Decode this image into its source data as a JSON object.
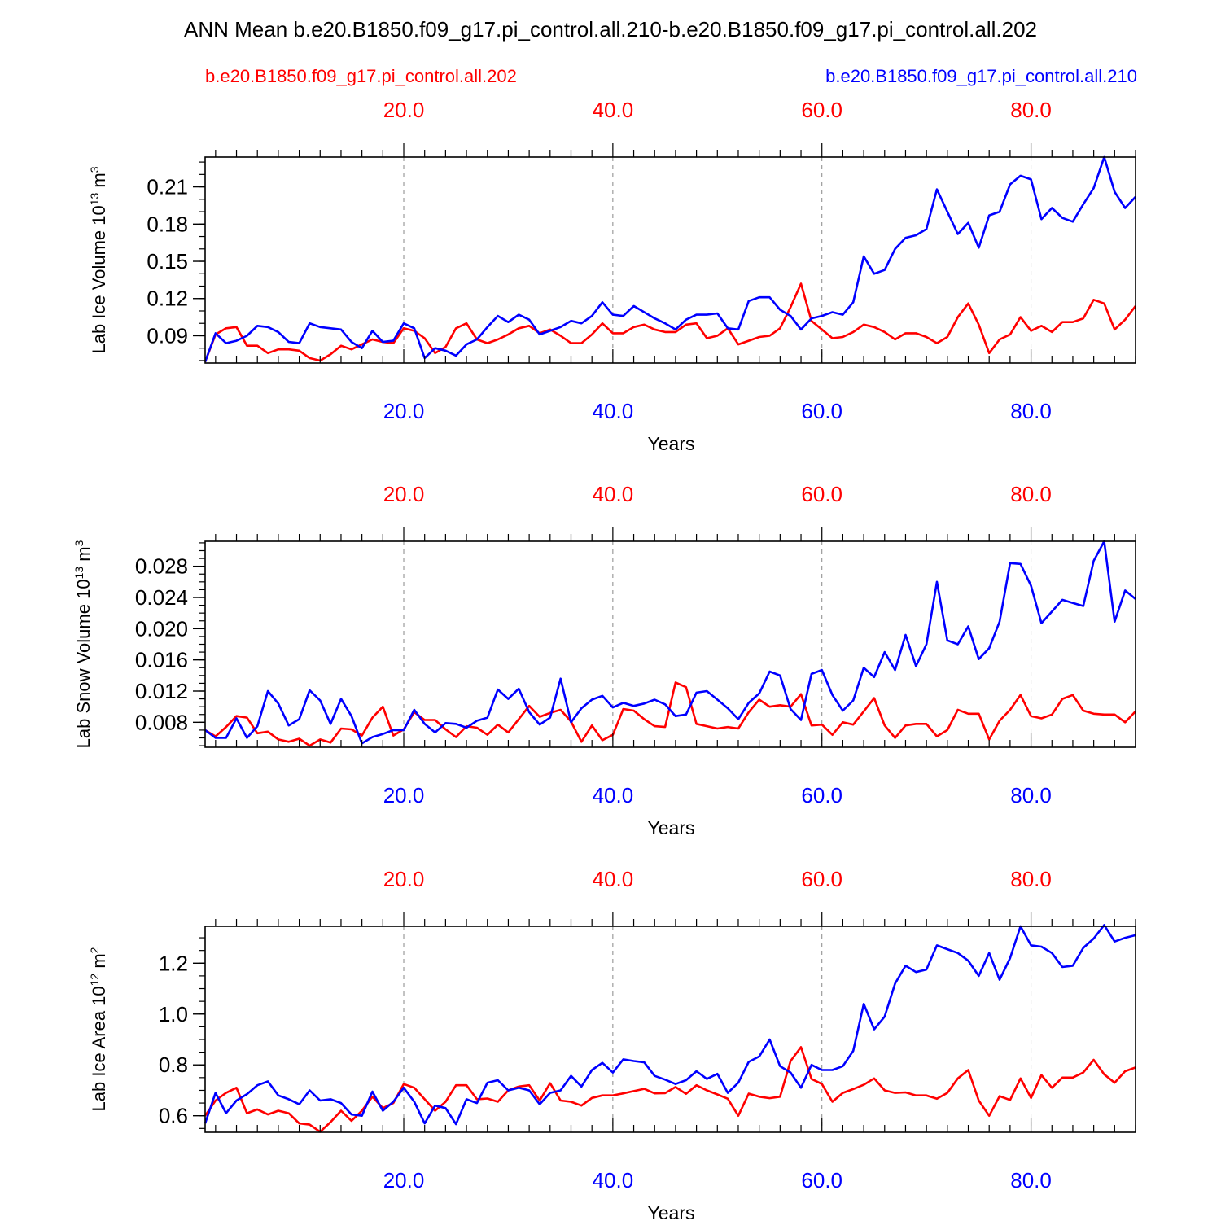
{
  "title": "ANN Mean b.e20.B1850.f09_g17.pi_control.all.210-b.e20.B1850.f09_g17.pi_control.all.202",
  "legend": {
    "left": "b.e20.B1850.f09_g17.pi_control.all.202",
    "right": "b.e20.B1850.f09_g17.pi_control.all.210"
  },
  "colors": {
    "case_202": "#ff0000",
    "case_210": "#0000ff",
    "axis": "#000000",
    "grid": "#888888"
  },
  "chart_data": [
    {
      "type": "line",
      "ylabel": "Lab Ice Volume 10",
      "ylabel_exp": "13",
      "ylabel_unit": " m",
      "ylabel_unit_exp": "3",
      "xlabel": "Years",
      "xlim": [
        1,
        90
      ],
      "ylim": [
        0.068,
        0.234
      ],
      "yticks": [
        0.09,
        0.12,
        0.15,
        0.18,
        0.21
      ],
      "ytick_labels": [
        "0.09",
        "0.12",
        "0.15",
        "0.18",
        "0.21"
      ],
      "yminor_step": 0.01,
      "xticks": [
        20,
        40,
        60,
        80
      ],
      "xtick_labels": [
        "20.0",
        "40.0",
        "60.0",
        "80.0"
      ],
      "series": [
        {
          "name": "b.e20.B1850.f09_g17.pi_control.all.202",
          "color": "#ff0000",
          "values": [
            0.069,
            0.091,
            0.096,
            0.097,
            0.082,
            0.082,
            0.076,
            0.079,
            0.079,
            0.078,
            0.072,
            0.07,
            0.075,
            0.082,
            0.079,
            0.083,
            0.087,
            0.085,
            0.084,
            0.096,
            0.094,
            0.088,
            0.076,
            0.081,
            0.096,
            0.1,
            0.087,
            0.084,
            0.087,
            0.091,
            0.096,
            0.098,
            0.092,
            0.095,
            0.09,
            0.084,
            0.084,
            0.091,
            0.1,
            0.092,
            0.092,
            0.097,
            0.099,
            0.095,
            0.093,
            0.093,
            0.099,
            0.1,
            0.088,
            0.09,
            0.096,
            0.083,
            0.086,
            0.089,
            0.09,
            0.096,
            0.113,
            0.132,
            0.102,
            0.095,
            0.088,
            0.089,
            0.093,
            0.099,
            0.097,
            0.093,
            0.087,
            0.092,
            0.092,
            0.089,
            0.084,
            0.089,
            0.105,
            0.116,
            0.099,
            0.076,
            0.087,
            0.091,
            0.105,
            0.094,
            0.098,
            0.093,
            0.101,
            0.101,
            0.104,
            0.119,
            0.116,
            0.095,
            0.103,
            0.114
          ]
        },
        {
          "name": "b.e20.B1850.f09_g17.pi_control.all.210",
          "color": "#0000ff",
          "values": [
            0.069,
            0.092,
            0.084,
            0.086,
            0.09,
            0.098,
            0.097,
            0.093,
            0.085,
            0.084,
            0.1,
            0.097,
            0.096,
            0.095,
            0.085,
            0.08,
            0.094,
            0.085,
            0.086,
            0.1,
            0.096,
            0.072,
            0.08,
            0.078,
            0.074,
            0.083,
            0.087,
            0.097,
            0.106,
            0.101,
            0.107,
            0.103,
            0.091,
            0.094,
            0.097,
            0.102,
            0.1,
            0.106,
            0.117,
            0.107,
            0.106,
            0.114,
            0.109,
            0.104,
            0.1,
            0.095,
            0.103,
            0.107,
            0.107,
            0.108,
            0.096,
            0.095,
            0.118,
            0.121,
            0.121,
            0.111,
            0.106,
            0.095,
            0.104,
            0.106,
            0.109,
            0.107,
            0.117,
            0.154,
            0.14,
            0.143,
            0.16,
            0.169,
            0.171,
            0.176,
            0.208,
            0.19,
            0.172,
            0.181,
            0.161,
            0.187,
            0.19,
            0.212,
            0.219,
            0.216,
            0.184,
            0.193,
            0.185,
            0.182,
            0.196,
            0.209,
            0.234,
            0.206,
            0.193,
            0.202
          ]
        }
      ]
    },
    {
      "type": "line",
      "ylabel": "Lab Snow Volume 10",
      "ylabel_exp": "13",
      "ylabel_unit": " m",
      "ylabel_unit_exp": "3",
      "xlabel": "Years",
      "xlim": [
        1,
        90
      ],
      "ylim": [
        0.0048,
        0.0312
      ],
      "yticks": [
        0.008,
        0.012,
        0.016,
        0.02,
        0.024,
        0.028
      ],
      "ytick_labels": [
        "0.008",
        "0.012",
        "0.016",
        "0.020",
        "0.024",
        "0.028"
      ],
      "yminor_step": 0.001,
      "xticks": [
        20,
        40,
        60,
        80
      ],
      "xtick_labels": [
        "20.0",
        "40.0",
        "60.0",
        "80.0"
      ],
      "series": [
        {
          "name": "b.e20.B1850.f09_g17.pi_control.all.202",
          "color": "#ff0000",
          "values": [
            0.007,
            0.0062,
            0.0074,
            0.0088,
            0.0086,
            0.0066,
            0.0068,
            0.0058,
            0.0055,
            0.0059,
            0.005,
            0.0058,
            0.0054,
            0.0072,
            0.0071,
            0.0063,
            0.0086,
            0.01,
            0.0063,
            0.0071,
            0.0093,
            0.0083,
            0.0083,
            0.0071,
            0.0061,
            0.0075,
            0.0073,
            0.0064,
            0.0077,
            0.0067,
            0.0084,
            0.0101,
            0.0087,
            0.0092,
            0.0096,
            0.0081,
            0.0055,
            0.0076,
            0.0057,
            0.0064,
            0.0097,
            0.0095,
            0.0084,
            0.0075,
            0.0074,
            0.0131,
            0.0125,
            0.0078,
            0.0075,
            0.0072,
            0.0074,
            0.0072,
            0.0093,
            0.0109,
            0.01,
            0.0102,
            0.01,
            0.0116,
            0.0076,
            0.0077,
            0.0064,
            0.008,
            0.0077,
            0.0094,
            0.0111,
            0.0076,
            0.006,
            0.0076,
            0.0078,
            0.0078,
            0.0062,
            0.007,
            0.0096,
            0.0091,
            0.0091,
            0.0058,
            0.0082,
            0.0096,
            0.0115,
            0.0088,
            0.0085,
            0.009,
            0.011,
            0.0115,
            0.0095,
            0.0091,
            0.009,
            0.009,
            0.008,
            0.0094
          ]
        },
        {
          "name": "b.e20.B1850.f09_g17.pi_control.all.210",
          "color": "#0000ff",
          "values": [
            0.007,
            0.006,
            0.006,
            0.0085,
            0.006,
            0.0075,
            0.012,
            0.0104,
            0.0076,
            0.0084,
            0.0121,
            0.0108,
            0.0078,
            0.011,
            0.0088,
            0.0053,
            0.0061,
            0.0065,
            0.007,
            0.007,
            0.0096,
            0.0078,
            0.0067,
            0.0079,
            0.0078,
            0.0073,
            0.0082,
            0.0086,
            0.0122,
            0.011,
            0.0123,
            0.0093,
            0.0077,
            0.0086,
            0.0136,
            0.008,
            0.0098,
            0.0109,
            0.0114,
            0.0099,
            0.0105,
            0.0101,
            0.0104,
            0.0109,
            0.0103,
            0.0088,
            0.009,
            0.0118,
            0.012,
            0.0109,
            0.0098,
            0.0084,
            0.0105,
            0.0117,
            0.0145,
            0.014,
            0.0097,
            0.0083,
            0.0142,
            0.0147,
            0.0115,
            0.0095,
            0.0108,
            0.015,
            0.0138,
            0.017,
            0.0147,
            0.0192,
            0.0152,
            0.018,
            0.026,
            0.0185,
            0.018,
            0.0203,
            0.0161,
            0.0175,
            0.0209,
            0.0284,
            0.0283,
            0.0255,
            0.0207,
            0.0222,
            0.0237,
            0.0233,
            0.0229,
            0.0287,
            0.0312,
            0.0209,
            0.0249,
            0.0238
          ]
        }
      ]
    },
    {
      "type": "line",
      "ylabel": "Lab Ice Area 10",
      "ylabel_exp": "12",
      "ylabel_unit": " m",
      "ylabel_unit_exp": "2",
      "xlabel": "Years",
      "xlim": [
        1,
        90
      ],
      "ylim": [
        0.535,
        1.345
      ],
      "yticks": [
        0.6,
        0.8,
        1.0,
        1.2
      ],
      "ytick_labels": [
        "0.6",
        "0.8",
        "1.0",
        "1.2"
      ],
      "yminor_step": 0.05,
      "xticks": [
        20,
        40,
        60,
        80
      ],
      "xtick_labels": [
        "20.0",
        "40.0",
        "60.0",
        "80.0"
      ],
      "series": [
        {
          "name": "b.e20.B1850.f09_g17.pi_control.all.202",
          "color": "#ff0000",
          "values": [
            0.6,
            0.66,
            0.69,
            0.71,
            0.61,
            0.625,
            0.605,
            0.62,
            0.61,
            0.57,
            0.565,
            0.537,
            0.575,
            0.62,
            0.58,
            0.62,
            0.675,
            0.63,
            0.65,
            0.725,
            0.71,
            0.665,
            0.62,
            0.655,
            0.72,
            0.72,
            0.665,
            0.668,
            0.655,
            0.7,
            0.715,
            0.72,
            0.66,
            0.728,
            0.66,
            0.655,
            0.64,
            0.67,
            0.68,
            0.68,
            0.688,
            0.697,
            0.706,
            0.688,
            0.689,
            0.713,
            0.686,
            0.72,
            0.7,
            0.684,
            0.667,
            0.6,
            0.687,
            0.675,
            0.669,
            0.675,
            0.815,
            0.87,
            0.745,
            0.725,
            0.655,
            0.69,
            0.705,
            0.722,
            0.747,
            0.7,
            0.69,
            0.692,
            0.68,
            0.68,
            0.667,
            0.69,
            0.747,
            0.78,
            0.66,
            0.6,
            0.677,
            0.662,
            0.747,
            0.67,
            0.76,
            0.71,
            0.75,
            0.75,
            0.77,
            0.82,
            0.763,
            0.73,
            0.775,
            0.79
          ]
        },
        {
          "name": "b.e20.B1850.f09_g17.pi_control.all.210",
          "color": "#0000ff",
          "values": [
            0.57,
            0.69,
            0.61,
            0.66,
            0.685,
            0.72,
            0.735,
            0.68,
            0.665,
            0.645,
            0.7,
            0.66,
            0.665,
            0.65,
            0.605,
            0.6,
            0.695,
            0.62,
            0.655,
            0.71,
            0.655,
            0.57,
            0.64,
            0.63,
            0.567,
            0.665,
            0.65,
            0.73,
            0.74,
            0.7,
            0.71,
            0.7,
            0.645,
            0.69,
            0.7,
            0.757,
            0.715,
            0.78,
            0.808,
            0.77,
            0.822,
            0.815,
            0.81,
            0.757,
            0.742,
            0.725,
            0.74,
            0.775,
            0.745,
            0.765,
            0.69,
            0.73,
            0.812,
            0.833,
            0.9,
            0.795,
            0.77,
            0.71,
            0.8,
            0.78,
            0.78,
            0.795,
            0.855,
            1.04,
            0.94,
            0.99,
            1.12,
            1.19,
            1.165,
            1.175,
            1.27,
            1.255,
            1.24,
            1.21,
            1.15,
            1.24,
            1.135,
            1.22,
            1.345,
            1.27,
            1.265,
            1.24,
            1.185,
            1.19,
            1.26,
            1.297,
            1.35,
            1.285,
            1.3,
            1.31
          ]
        }
      ]
    }
  ]
}
